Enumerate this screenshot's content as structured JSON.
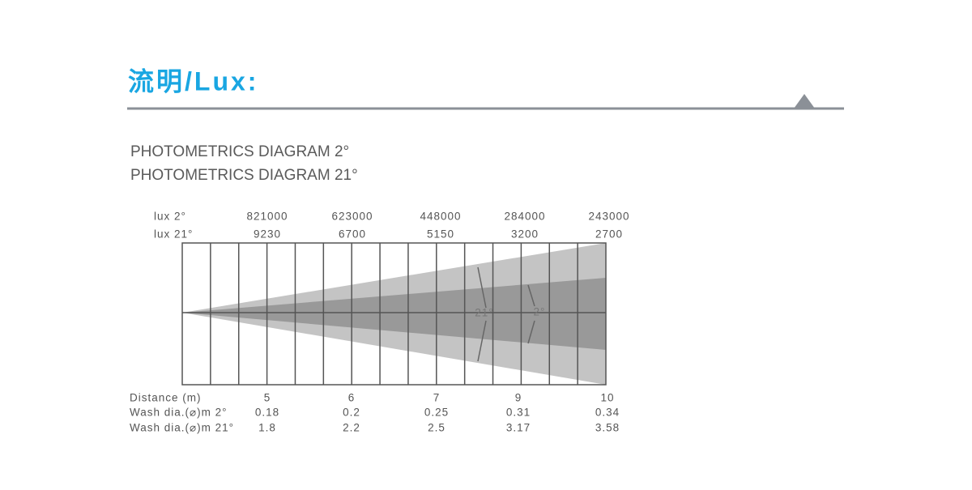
{
  "header": {
    "title": "流明/Lux:"
  },
  "subtitles": [
    "PHOTOMETRICS DIAGRAM 2°",
    "PHOTOMETRICS DIAGRAM 21°"
  ],
  "lux_rows": [
    {
      "label": "lux 2°",
      "values": [
        821000,
        623000,
        448000,
        284000,
        243000
      ]
    },
    {
      "label": "lux 21°",
      "values": [
        9230,
        6700,
        5150,
        3200,
        2700
      ]
    }
  ],
  "beam_labels": [
    "21°",
    "2°"
  ],
  "table_rows": [
    {
      "label": "Distance (m)",
      "values": [
        5,
        6,
        7,
        9,
        10
      ]
    },
    {
      "label": "Wash dia.(⌀)m 2°",
      "values": [
        0.18,
        0.2,
        0.25,
        0.31,
        0.34
      ]
    },
    {
      "label": "Wash dia.(⌀)m 21°",
      "values": [
        1.8,
        2.2,
        2.5,
        3.17,
        3.58
      ]
    }
  ]
}
